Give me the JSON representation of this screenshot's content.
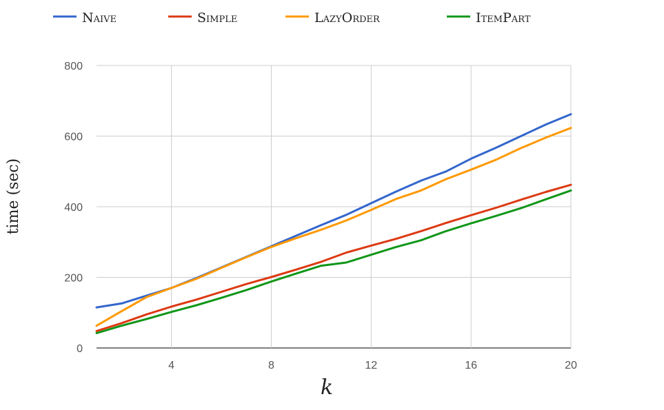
{
  "chart_data": {
    "type": "line",
    "xlabel": "k",
    "ylabel": "time (sec)",
    "xlim": [
      1,
      20
    ],
    "ylim": [
      0,
      800
    ],
    "x_ticks": [
      4,
      8,
      12,
      16,
      20
    ],
    "y_ticks": [
      0,
      200,
      400,
      600,
      800
    ],
    "grid": true,
    "legend_position": "top",
    "x": [
      1,
      2,
      3,
      4,
      5,
      6,
      7,
      8,
      9,
      10,
      11,
      12,
      13,
      14,
      15,
      16,
      17,
      18,
      19,
      20
    ],
    "series": [
      {
        "name": "Naive",
        "color": "#3366cc",
        "values": [
          115,
          126,
          148,
          170,
          198,
          228,
          258,
          288,
          318,
          348,
          377,
          410,
          443,
          474,
          500,
          536,
          567,
          600,
          633,
          662
        ]
      },
      {
        "name": "Simple",
        "color": "#dc3912",
        "values": [
          48,
          70,
          95,
          117,
          137,
          159,
          181,
          201,
          222,
          244,
          270,
          290,
          309,
          331,
          354,
          376,
          397,
          420,
          442,
          462
        ]
      },
      {
        "name": "LazyOrder",
        "color": "#ff9900",
        "values": [
          63,
          104,
          144,
          170,
          196,
          227,
          257,
          286,
          311,
          335,
          361,
          391,
          422,
          446,
          478,
          505,
          533,
          566,
          596,
          623
        ]
      },
      {
        "name": "ItemPart",
        "color": "#109618",
        "values": [
          42,
          63,
          82,
          102,
          121,
          142,
          164,
          188,
          211,
          233,
          242,
          264,
          286,
          305,
          331,
          353,
          374,
          396,
          421,
          446
        ]
      }
    ]
  }
}
